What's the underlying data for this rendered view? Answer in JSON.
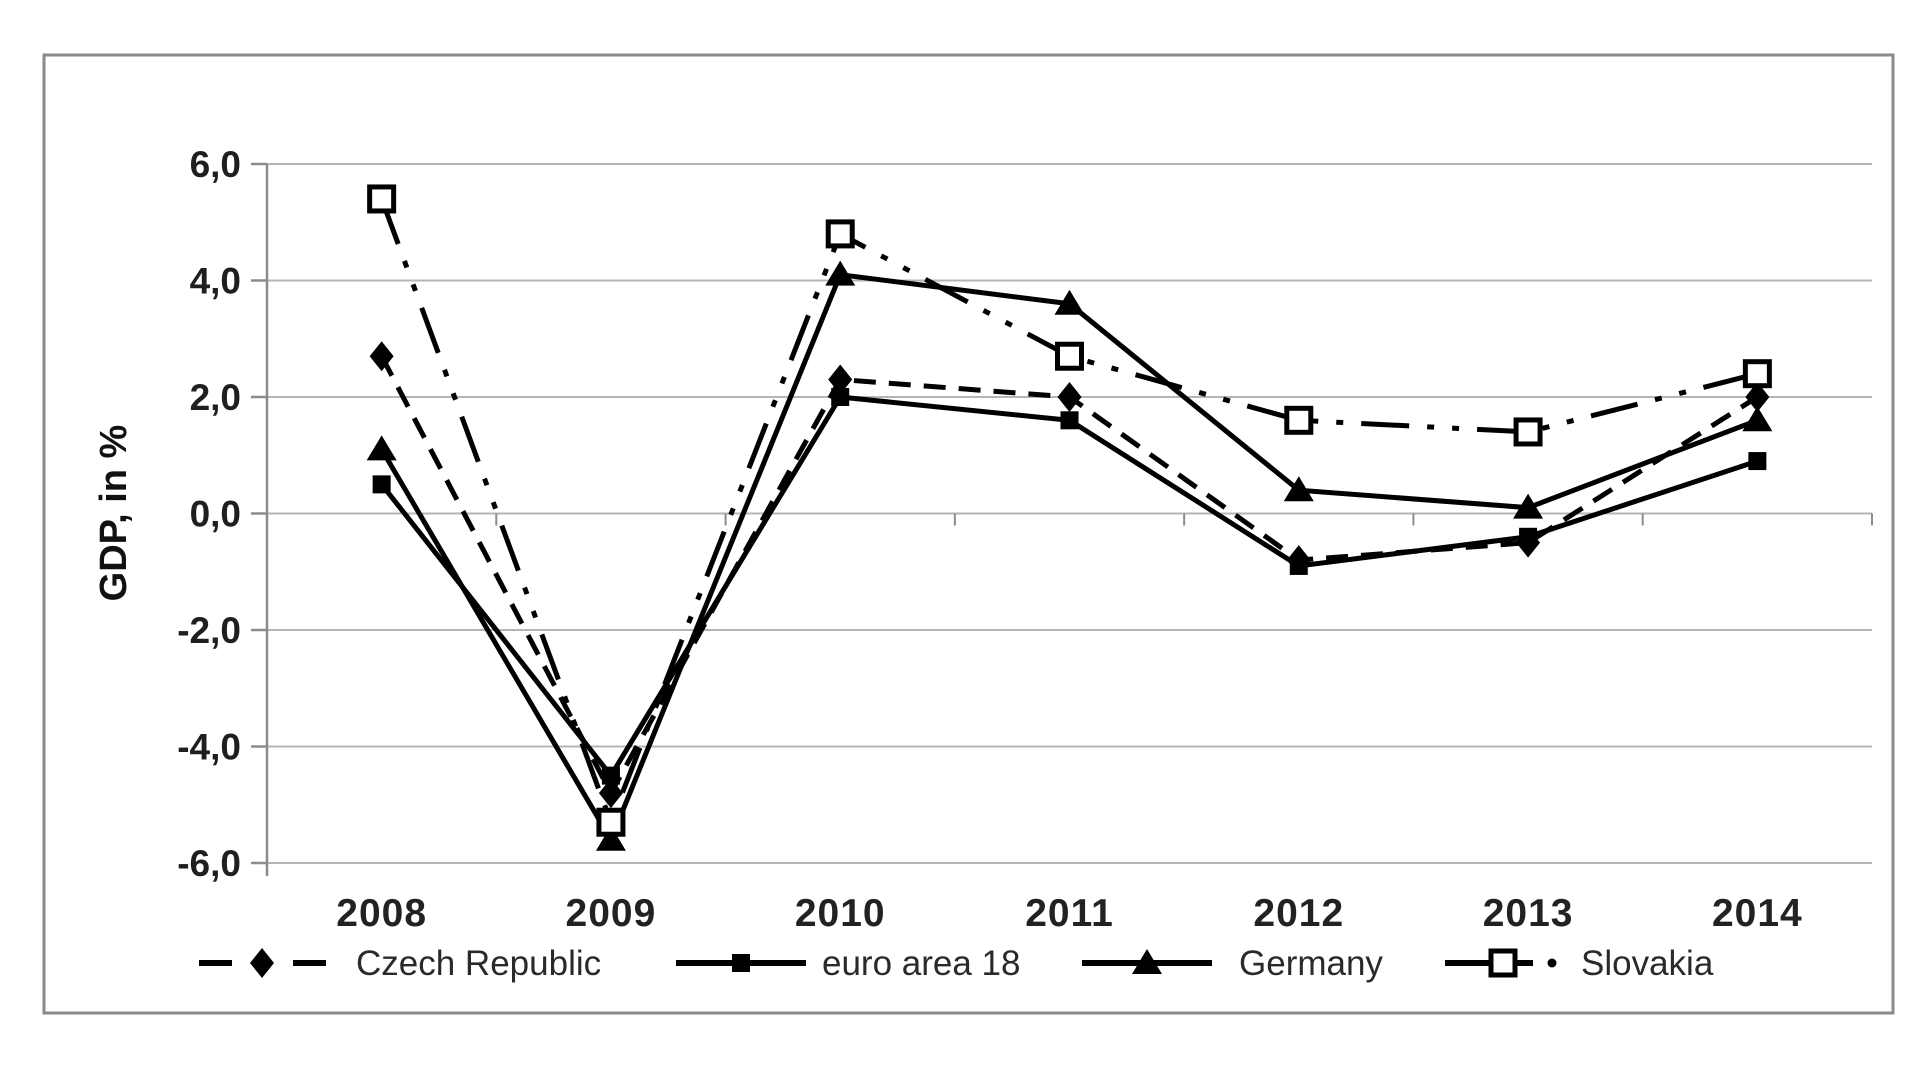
{
  "chart_data": {
    "type": "line",
    "title": "",
    "xlabel": "",
    "ylabel": "GDP, in %",
    "categories": [
      "2008",
      "2009",
      "2010",
      "2011",
      "2012",
      "2013",
      "2014"
    ],
    "series": [
      {
        "name": "Czech Republic",
        "line_style": "dashed",
        "marker": "filled-diamond",
        "color": "#000000",
        "values": [
          2.7,
          -4.8,
          2.3,
          2.0,
          -0.8,
          -0.5,
          2.0
        ]
      },
      {
        "name": "euro area 18",
        "line_style": "solid",
        "marker": "filled-square",
        "color": "#000000",
        "values": [
          0.5,
          -4.5,
          2.0,
          1.6,
          -0.9,
          -0.4,
          0.9
        ]
      },
      {
        "name": "Germany",
        "line_style": "solid",
        "marker": "filled-triangle",
        "color": "#000000",
        "values": [
          1.1,
          -5.6,
          4.1,
          3.6,
          0.4,
          0.1,
          1.6
        ]
      },
      {
        "name": "Slovakia",
        "line_style": "dash-dot-dot",
        "marker": "open-square",
        "color": "#000000",
        "values": [
          5.4,
          -5.3,
          4.8,
          2.7,
          1.6,
          1.4,
          2.4
        ]
      }
    ],
    "ylim": [
      -6.0,
      6.0
    ],
    "ytick_step": 2.0,
    "ytick_labels": [
      "6,0",
      "4,0",
      "2,0",
      "0,0",
      "-2,0",
      "-4,0",
      "-6,0"
    ],
    "decimal_separator": ",",
    "grid": "horizontal",
    "legend_position": "bottom",
    "colors": {
      "line": "#000000",
      "grid": "#b5b5b5",
      "axis": "#8c8c8c",
      "frame": "#8a8a8a",
      "text": "#1f1f1f",
      "background": "#ffffff"
    }
  }
}
